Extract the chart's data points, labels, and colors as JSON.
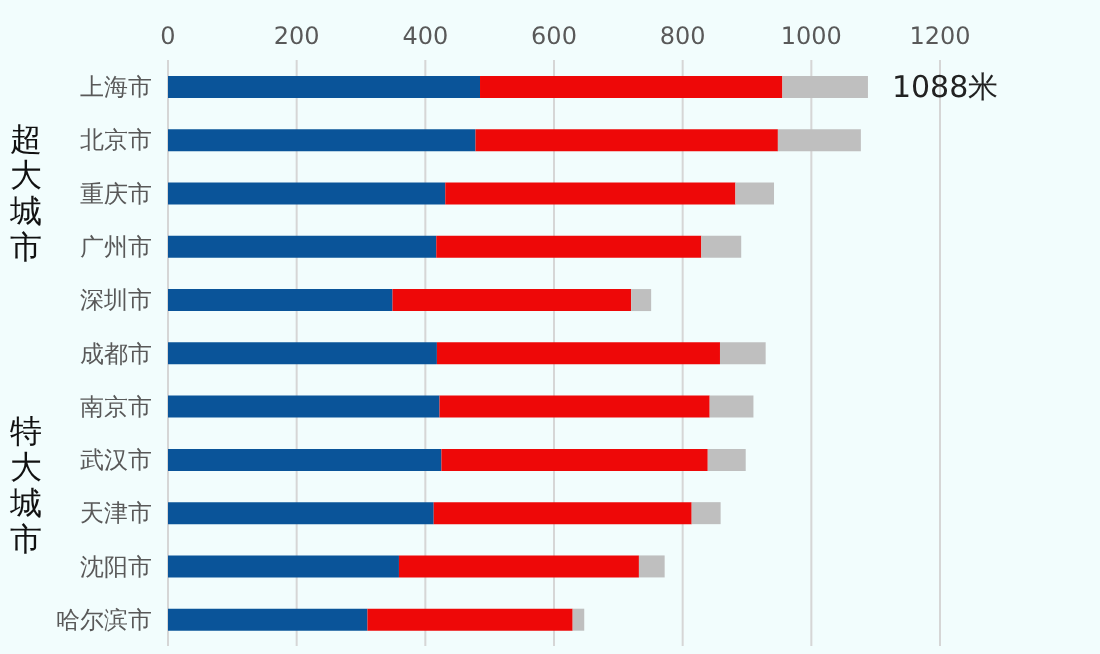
{
  "chart_data": {
    "type": "bar",
    "orientation": "horizontal",
    "stacked": true,
    "categories": [
      "上海市",
      "北京市",
      "重庆市",
      "广州市",
      "深圳市",
      "成都市",
      "南京市",
      "武汉市",
      "天津市",
      "沈阳市",
      "哈尔滨市"
    ],
    "series": [
      {
        "color": "#0a5499",
        "values": [
          485,
          478,
          431,
          417,
          349,
          418,
          422,
          425,
          413,
          359,
          310
        ]
      },
      {
        "color": "#ee0808",
        "values": [
          470,
          470,
          451,
          412,
          371,
          440,
          420,
          414,
          401,
          373,
          319
        ]
      },
      {
        "color": "#bfbfbf",
        "values": [
          133,
          129,
          60,
          62,
          31,
          71,
          68,
          59,
          45,
          40,
          18
        ]
      }
    ],
    "xlim": [
      0,
      1200
    ],
    "xticks": [
      0,
      200,
      400,
      600,
      800,
      1000,
      1200
    ],
    "grid": "x",
    "annotations": [
      "超大城市",
      "特大城市",
      {
        "text": "1088米",
        "x": 1088,
        "y": "上海市"
      }
    ]
  }
}
